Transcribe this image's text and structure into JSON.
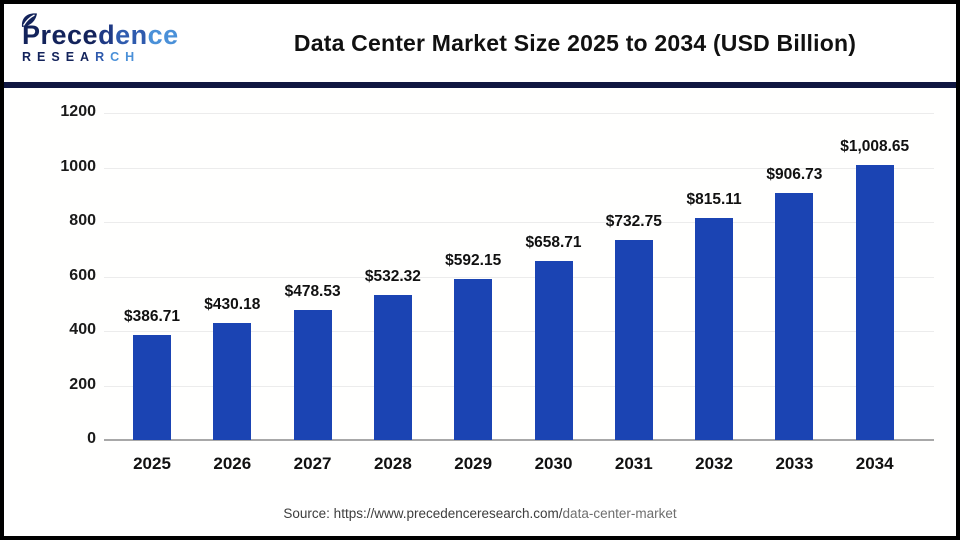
{
  "header": {
    "logo": {
      "line1_segments": [
        {
          "text": "Prece",
          "color": "#13235B"
        },
        {
          "text": "d",
          "color": "#1F3A85"
        },
        {
          "text": "en",
          "color": "#2F5BAE"
        },
        {
          "text": "ce",
          "color": "#4A90D8"
        }
      ],
      "line2_segments": [
        {
          "text": "RESEA",
          "color": "#13235B"
        },
        {
          "text": "R",
          "color": "#2E59AC"
        },
        {
          "text": "CH",
          "color": "#4A90D8"
        }
      ]
    },
    "title": "Data Center Market Size 2025 to 2034 (USD Billion)"
  },
  "chart_data": {
    "type": "bar",
    "title": "Data Center Market Size 2025 to 2034 (USD Billion)",
    "unit": "USD Billion",
    "categories": [
      "2025",
      "2026",
      "2027",
      "2028",
      "2029",
      "2030",
      "2031",
      "2032",
      "2033",
      "2034"
    ],
    "values": [
      386.71,
      430.18,
      478.53,
      532.32,
      592.15,
      658.71,
      732.75,
      815.11,
      906.73,
      1008.65
    ],
    "value_labels": [
      "$386.71",
      "$430.18",
      "$478.53",
      "$532.32",
      "$592.15",
      "$658.71",
      "$732.75",
      "$815.11",
      "$906.73",
      "$1,008.65"
    ],
    "xlabel": "",
    "ylabel": "",
    "ylim": [
      0,
      1200
    ],
    "yticks": [
      0,
      200,
      400,
      600,
      800,
      1000,
      1200
    ],
    "bar_color": "#1B44B3",
    "grid": "horizontal-only",
    "gridline_color": "#ECECEC",
    "axis_line_color": "#A8A8A8",
    "legend": "none"
  },
  "footer": {
    "source_prefix": "Source: https://www.precedenceresearch.com/",
    "source_path": "data-center-market"
  }
}
